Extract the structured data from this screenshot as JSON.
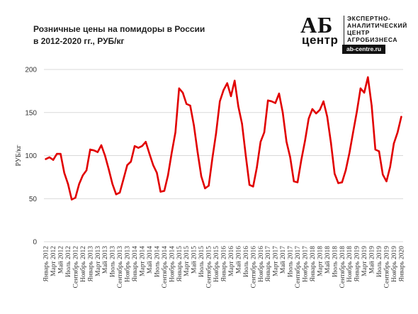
{
  "header": {
    "title_line1": "Розничные цены на помидоры в России",
    "title_line2": "в 2012-2020 гг., РУБ/кг"
  },
  "logo": {
    "mark": "АБ",
    "word": "центр",
    "tagline_1": "ЭКСПЕРТНО-",
    "tagline_2": "АНАЛИТИЧЕСКИЙ",
    "tagline_3": "ЦЕНТР",
    "tagline_4": "АГРОБИЗНЕСА",
    "site": "ab-centre.ru"
  },
  "chart_data": {
    "type": "line",
    "title": "Розничные цены на помидоры в России в 2012-2020 гг., РУБ/кг",
    "xlabel": "",
    "ylabel": "РУБ/кг",
    "ylim": [
      0,
      200
    ],
    "yticks": [
      0,
      50,
      100,
      150,
      200
    ],
    "grid": "horizontal",
    "line_color": "#e10000",
    "x_tick_labels": [
      "Январь 2012",
      "Март 2012",
      "Май 2012",
      "Июль 2012",
      "Сентябрь 2012",
      "Ноябрь 2012",
      "Январь 2013",
      "Март 2013",
      "Май 2013",
      "Июль 2013",
      "Сентябрь 2013",
      "Ноябрь 2013",
      "Январь 2014",
      "Март 2014",
      "Май 2014",
      "Июль 2014",
      "Сентябрь 2014",
      "Ноябрь 2014",
      "Январь 2015",
      "Март 2015",
      "Май 2015",
      "Июль 2015",
      "Сентябрь 2015",
      "Ноябрь 2015",
      "Январь 2016",
      "Март 2016",
      "Май 2016",
      "Июль 2016",
      "Сентябрь 2016",
      "Ноябрь 2016",
      "Январь 2017",
      "Март 2017",
      "Май 2017",
      "Июль 2017",
      "Сентябрь 2017",
      "Ноябрь 2017",
      "Январь 2018",
      "Март 2018",
      "Май 2018",
      "Июль 2018",
      "Сентябрь 2018",
      "Ноябрь 2018",
      "Январь 2019",
      "Март 2019",
      "Май 2019",
      "Июль 2019",
      "Сентябрь 2019",
      "Ноябрь 2019",
      "Январь 2020"
    ],
    "series": [
      {
        "values": [
          96,
          98,
          95,
          102,
          102,
          80,
          67,
          49,
          51,
          67,
          77,
          83,
          107,
          106,
          104,
          112,
          100,
          84,
          67,
          55,
          57,
          73,
          89,
          93,
          111,
          109,
          111,
          116,
          102,
          89,
          80,
          58,
          59,
          77,
          103,
          127,
          178,
          173,
          160,
          158,
          135,
          104,
          76,
          62,
          65,
          97,
          126,
          163,
          176,
          184,
          169,
          187,
          157,
          137,
          100,
          66,
          64,
          86,
          116,
          127,
          164,
          163,
          161,
          172,
          150,
          116,
          98,
          70,
          69,
          95,
          117,
          143,
          154,
          149,
          153,
          163,
          145,
          115,
          79,
          68,
          69,
          83,
          103,
          127,
          151,
          178,
          173,
          191,
          158,
          107,
          105,
          78,
          70,
          87,
          114,
          127,
          145
        ]
      }
    ]
  }
}
